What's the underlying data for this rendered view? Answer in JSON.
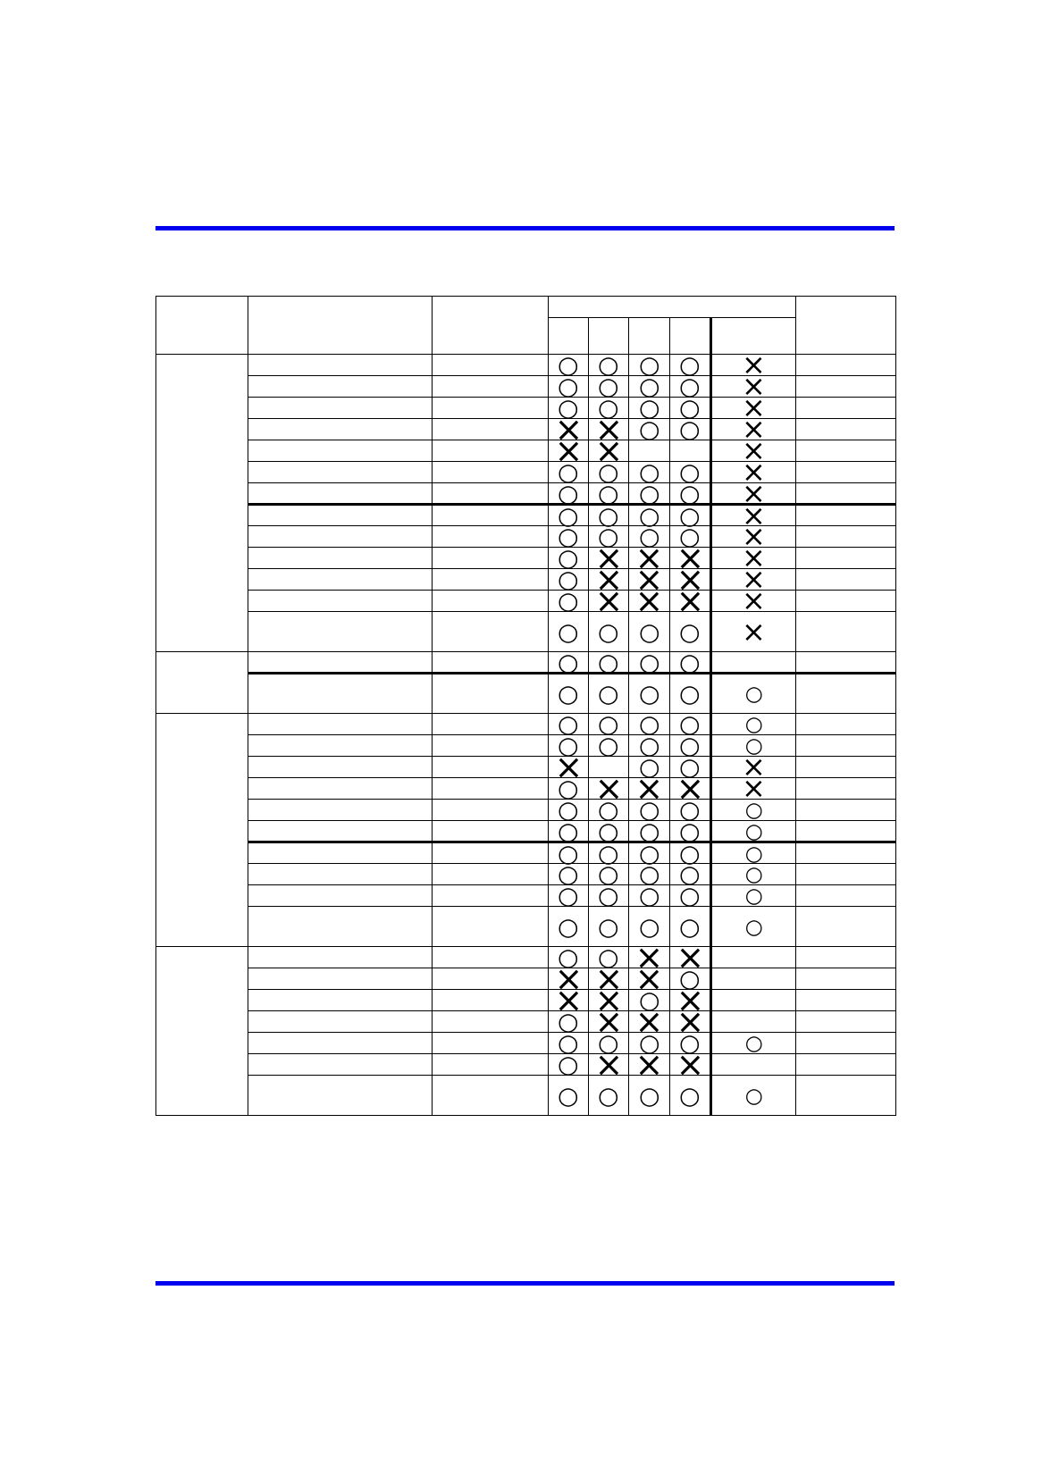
{
  "page": {
    "background_color": "#ffffff"
  },
  "rules": {
    "top_rule_color": "#0000ee",
    "bottom_rule_color": "#0000ee"
  },
  "symbols": {
    "o": "○",
    "x": "×"
  },
  "matrix": {
    "header": {
      "col1": "",
      "col2": "",
      "col3": "",
      "group": "",
      "sub_columns": [
        "",
        "",
        "",
        "",
        ""
      ],
      "col9": ""
    },
    "sections": [
      {
        "rows": [
          {
            "marks": [
              "o",
              "o",
              "o",
              "o",
              "x"
            ],
            "tall": false,
            "thick_bottom": false
          },
          {
            "marks": [
              "o",
              "o",
              "o",
              "o",
              "x"
            ],
            "tall": false,
            "thick_bottom": false
          },
          {
            "marks": [
              "o",
              "o",
              "o",
              "o",
              "x"
            ],
            "tall": false,
            "thick_bottom": false
          },
          {
            "marks": [
              "x",
              "x",
              "o",
              "o",
              "x"
            ],
            "tall": false,
            "thick_bottom": false
          },
          {
            "marks": [
              "x",
              "x",
              "",
              "",
              "x"
            ],
            "tall": false,
            "thick_bottom": false
          },
          {
            "marks": [
              "o",
              "o",
              "o",
              "o",
              "x"
            ],
            "tall": false,
            "thick_bottom": false
          },
          {
            "marks": [
              "o",
              "o",
              "o",
              "o",
              "x"
            ],
            "tall": false,
            "thick_bottom": true
          },
          {
            "marks": [
              "o",
              "o",
              "o",
              "o",
              "x"
            ],
            "tall": false,
            "thick_bottom": false
          },
          {
            "marks": [
              "o",
              "o",
              "o",
              "o",
              "x"
            ],
            "tall": false,
            "thick_bottom": false
          },
          {
            "marks": [
              "o",
              "x",
              "x",
              "x",
              "x"
            ],
            "tall": false,
            "thick_bottom": false
          },
          {
            "marks": [
              "o",
              "x",
              "x",
              "x",
              "x"
            ],
            "tall": false,
            "thick_bottom": false
          },
          {
            "marks": [
              "o",
              "x",
              "x",
              "x",
              "x"
            ],
            "tall": false,
            "thick_bottom": false
          },
          {
            "marks": [
              "o",
              "o",
              "o",
              "o",
              "x"
            ],
            "tall": true,
            "thick_bottom": false
          }
        ]
      },
      {
        "rows": [
          {
            "marks": [
              "o",
              "o",
              "o",
              "o",
              ""
            ],
            "tall": false,
            "thick_bottom": true
          },
          {
            "marks": [
              "o",
              "o",
              "o",
              "o",
              "o"
            ],
            "tall": true,
            "thick_bottom": false
          }
        ]
      },
      {
        "rows": [
          {
            "marks": [
              "o",
              "o",
              "o",
              "o",
              "o"
            ],
            "tall": false,
            "thick_bottom": false
          },
          {
            "marks": [
              "o",
              "o",
              "o",
              "o",
              "o"
            ],
            "tall": false,
            "thick_bottom": false
          },
          {
            "marks": [
              "x",
              "",
              "o",
              "o",
              "x"
            ],
            "tall": false,
            "thick_bottom": false
          },
          {
            "marks": [
              "o",
              "x",
              "x",
              "x",
              "x"
            ],
            "tall": false,
            "thick_bottom": false
          },
          {
            "marks": [
              "o",
              "o",
              "o",
              "o",
              "o"
            ],
            "tall": false,
            "thick_bottom": false
          },
          {
            "marks": [
              "o",
              "o",
              "o",
              "o",
              "o"
            ],
            "tall": false,
            "thick_bottom": true
          },
          {
            "marks": [
              "o",
              "o",
              "o",
              "o",
              "o"
            ],
            "tall": false,
            "thick_bottom": false
          },
          {
            "marks": [
              "o",
              "o",
              "o",
              "o",
              "o"
            ],
            "tall": false,
            "thick_bottom": false
          },
          {
            "marks": [
              "o",
              "o",
              "o",
              "o",
              "o"
            ],
            "tall": false,
            "thick_bottom": false
          },
          {
            "marks": [
              "o",
              "o",
              "o",
              "o",
              "o"
            ],
            "tall": true,
            "thick_bottom": false
          }
        ]
      },
      {
        "rows": [
          {
            "marks": [
              "o",
              "o",
              "x",
              "x",
              ""
            ],
            "tall": false,
            "thick_bottom": false
          },
          {
            "marks": [
              "x",
              "x",
              "x",
              "o",
              ""
            ],
            "tall": false,
            "thick_bottom": false
          },
          {
            "marks": [
              "x",
              "x",
              "o",
              "x",
              ""
            ],
            "tall": false,
            "thick_bottom": false
          },
          {
            "marks": [
              "o",
              "x",
              "x",
              "x",
              ""
            ],
            "tall": false,
            "thick_bottom": false
          },
          {
            "marks": [
              "o",
              "o",
              "o",
              "o",
              "o"
            ],
            "tall": false,
            "thick_bottom": false
          },
          {
            "marks": [
              "o",
              "x",
              "x",
              "x",
              ""
            ],
            "tall": false,
            "thick_bottom": false
          },
          {
            "marks": [
              "o",
              "o",
              "o",
              "o",
              "o"
            ],
            "tall": true,
            "thick_bottom": false
          }
        ]
      }
    ]
  }
}
